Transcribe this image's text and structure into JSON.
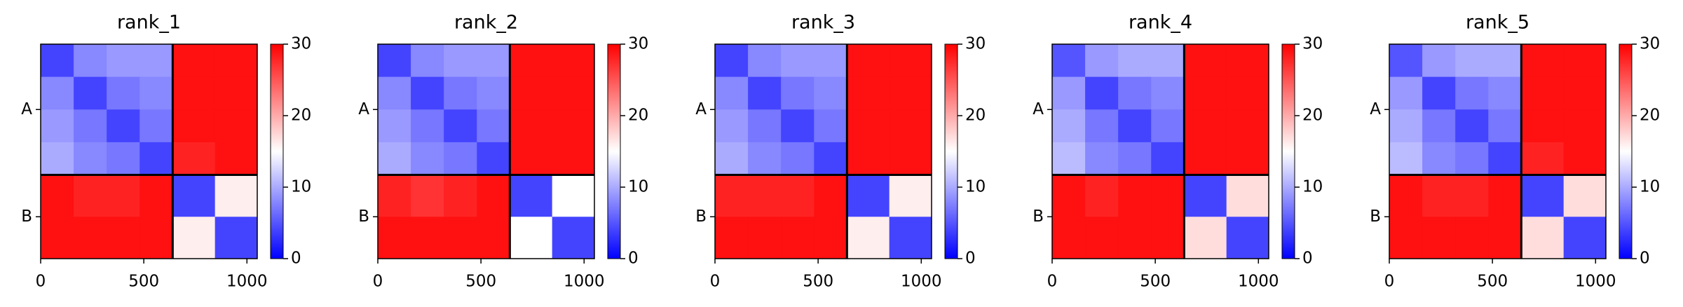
{
  "chart_data": [
    {
      "type": "heatmap",
      "title": "rank_1",
      "x_edges": [
        0,
        160,
        320,
        480,
        640,
        845,
        1050
      ],
      "y_edges": [
        0,
        160,
        320,
        480,
        640,
        845,
        1050
      ],
      "z": [
        [
          4,
          8,
          9,
          9,
          29,
          29
        ],
        [
          8,
          4,
          7,
          8,
          29,
          29
        ],
        [
          9,
          7,
          4,
          7,
          29,
          29
        ],
        [
          10,
          8,
          7,
          4,
          28,
          29
        ],
        [
          29,
          28,
          28,
          29,
          4,
          16
        ],
        [
          29,
          29,
          29,
          29,
          16,
          4
        ]
      ],
      "xlim": [
        0,
        1050
      ],
      "ylim": [
        1050,
        0
      ],
      "xticks": [
        0,
        500,
        1000
      ],
      "yticks": [
        {
          "value": 320,
          "label": "A"
        },
        {
          "value": 845,
          "label": "B"
        }
      ],
      "chain_breaks": [
        640
      ],
      "zlim": [
        0,
        30
      ],
      "zticks": [
        0,
        10,
        20,
        30
      ],
      "colormap": [
        "#0000ff",
        "#ffffff",
        "#ff0000"
      ]
    },
    {
      "type": "heatmap",
      "title": "rank_2",
      "x_edges": [
        0,
        160,
        320,
        480,
        640,
        845,
        1050
      ],
      "y_edges": [
        0,
        160,
        320,
        480,
        640,
        845,
        1050
      ],
      "z": [
        [
          4,
          8,
          9,
          9,
          29,
          29
        ],
        [
          8,
          4,
          7,
          8,
          29,
          29
        ],
        [
          9,
          7,
          4,
          7,
          29,
          29
        ],
        [
          10,
          8,
          7,
          4,
          29,
          29
        ],
        [
          28,
          27,
          28,
          29,
          4,
          15
        ],
        [
          29,
          29,
          29,
          29,
          15,
          4
        ]
      ],
      "xlim": [
        0,
        1050
      ],
      "ylim": [
        1050,
        0
      ],
      "xticks": [
        0,
        500,
        1000
      ],
      "yticks": [
        {
          "value": 320,
          "label": "A"
        },
        {
          "value": 845,
          "label": "B"
        }
      ],
      "chain_breaks": [
        640
      ],
      "zlim": [
        0,
        30
      ],
      "zticks": [
        0,
        10,
        20,
        30
      ],
      "colormap": [
        "#0000ff",
        "#ffffff",
        "#ff0000"
      ]
    },
    {
      "type": "heatmap",
      "title": "rank_3",
      "x_edges": [
        0,
        160,
        320,
        480,
        640,
        845,
        1050
      ],
      "y_edges": [
        0,
        160,
        320,
        480,
        640,
        845,
        1050
      ],
      "z": [
        [
          4,
          8,
          9,
          9,
          29,
          29
        ],
        [
          8,
          4,
          7,
          8,
          29,
          29
        ],
        [
          9,
          7,
          4,
          7,
          29,
          29
        ],
        [
          10,
          8,
          7,
          4,
          29,
          29
        ],
        [
          28,
          28,
          28,
          29,
          4,
          16
        ],
        [
          29,
          29,
          29,
          29,
          16,
          4
        ]
      ],
      "xlim": [
        0,
        1050
      ],
      "ylim": [
        1050,
        0
      ],
      "xticks": [
        0,
        500,
        1000
      ],
      "yticks": [
        {
          "value": 320,
          "label": "A"
        },
        {
          "value": 845,
          "label": "B"
        }
      ],
      "chain_breaks": [
        640
      ],
      "zlim": [
        0,
        30
      ],
      "zticks": [
        0,
        10,
        20,
        30
      ],
      "colormap": [
        "#0000ff",
        "#ffffff",
        "#ff0000"
      ]
    },
    {
      "type": "heatmap",
      "title": "rank_4",
      "x_edges": [
        0,
        160,
        320,
        480,
        640,
        845,
        1050
      ],
      "y_edges": [
        0,
        160,
        320,
        480,
        640,
        845,
        1050
      ],
      "z": [
        [
          5,
          9,
          10,
          10,
          29,
          29
        ],
        [
          9,
          4,
          7,
          8,
          29,
          29
        ],
        [
          10,
          7,
          4,
          7,
          29,
          29
        ],
        [
          11,
          8,
          7,
          4,
          29,
          29
        ],
        [
          29,
          28,
          29,
          29,
          4,
          17
        ],
        [
          29,
          29,
          29,
          29,
          17,
          4
        ]
      ],
      "xlim": [
        0,
        1050
      ],
      "ylim": [
        1050,
        0
      ],
      "xticks": [
        0,
        500,
        1000
      ],
      "yticks": [
        {
          "value": 320,
          "label": "A"
        },
        {
          "value": 845,
          "label": "B"
        }
      ],
      "chain_breaks": [
        640
      ],
      "zlim": [
        0,
        30
      ],
      "zticks": [
        0,
        10,
        20,
        30
      ],
      "colormap": [
        "#0000ff",
        "#ffffff",
        "#ff0000"
      ]
    },
    {
      "type": "heatmap",
      "title": "rank_5",
      "x_edges": [
        0,
        160,
        320,
        480,
        640,
        845,
        1050
      ],
      "y_edges": [
        0,
        160,
        320,
        480,
        640,
        845,
        1050
      ],
      "z": [
        [
          5,
          9,
          10,
          10,
          29,
          29
        ],
        [
          9,
          4,
          7,
          8,
          29,
          29
        ],
        [
          10,
          7,
          4,
          7,
          29,
          29
        ],
        [
          11,
          8,
          7,
          4,
          28,
          29
        ],
        [
          29,
          28,
          28,
          29,
          4,
          17
        ],
        [
          29,
          29,
          29,
          29,
          17,
          4
        ]
      ],
      "xlim": [
        0,
        1050
      ],
      "ylim": [
        1050,
        0
      ],
      "xticks": [
        0,
        500,
        1000
      ],
      "yticks": [
        {
          "value": 320,
          "label": "A"
        },
        {
          "value": 845,
          "label": "B"
        }
      ],
      "chain_breaks": [
        640
      ],
      "zlim": [
        0,
        30
      ],
      "zticks": [
        0,
        10,
        20,
        30
      ],
      "colormap": [
        "#0000ff",
        "#ffffff",
        "#ff0000"
      ]
    }
  ]
}
